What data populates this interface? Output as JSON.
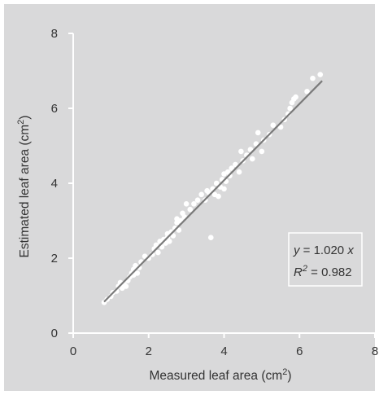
{
  "chart_data": {
    "type": "scatter",
    "xlabel": "Measured leaf area (cm",
    "xlabel_sup": "2",
    "xlabel_end": ")",
    "ylabel": "Estimated leaf area (cm",
    "ylabel_sup": "2",
    "ylabel_end": ")",
    "xlim": [
      0,
      8
    ],
    "ylim": [
      0,
      8
    ],
    "xticks": [
      0,
      2,
      4,
      6,
      8
    ],
    "yticks": [
      0,
      2,
      4,
      6,
      8
    ],
    "grid": false,
    "point_color": "#ffffff",
    "line_color": "#7a7a7a",
    "axis_color": "#ffffff",
    "background": "#d9d9da",
    "fit": {
      "slope": 1.02,
      "x_range": [
        0.82,
        6.6
      ]
    },
    "annotation": {
      "line1_var": "y",
      "line1_rest": " = 1.020 ",
      "line1_x": "x",
      "line2_var": "R",
      "line2_sup": "2",
      "line2_rest": " = 0.982"
    },
    "points": [
      [
        0.82,
        0.82
      ],
      [
        0.9,
        0.9
      ],
      [
        1.0,
        0.98
      ],
      [
        1.05,
        1.08
      ],
      [
        1.15,
        1.12
      ],
      [
        1.2,
        1.25
      ],
      [
        1.25,
        1.35
      ],
      [
        1.3,
        1.2
      ],
      [
        1.35,
        1.3
      ],
      [
        1.4,
        1.25
      ],
      [
        1.45,
        1.4
      ],
      [
        1.5,
        1.5
      ],
      [
        1.55,
        1.6
      ],
      [
        1.6,
        1.7
      ],
      [
        1.6,
        1.55
      ],
      [
        1.65,
        1.8
      ],
      [
        1.7,
        1.6
      ],
      [
        1.75,
        1.75
      ],
      [
        1.8,
        1.9
      ],
      [
        1.9,
        2.05
      ],
      [
        2.0,
        2.0
      ],
      [
        2.1,
        2.1
      ],
      [
        2.15,
        2.25
      ],
      [
        2.2,
        2.35
      ],
      [
        2.25,
        2.15
      ],
      [
        2.3,
        2.45
      ],
      [
        2.35,
        2.3
      ],
      [
        2.4,
        2.5
      ],
      [
        2.45,
        2.4
      ],
      [
        2.5,
        2.55
      ],
      [
        2.5,
        2.65
      ],
      [
        2.55,
        2.45
      ],
      [
        2.6,
        2.7
      ],
      [
        2.65,
        2.6
      ],
      [
        2.7,
        2.8
      ],
      [
        2.75,
        2.95
      ],
      [
        2.75,
        3.05
      ],
      [
        2.8,
        2.75
      ],
      [
        2.85,
        3.0
      ],
      [
        2.9,
        3.2
      ],
      [
        2.95,
        3.1
      ],
      [
        3.0,
        3.45
      ],
      [
        3.1,
        3.3
      ],
      [
        3.2,
        3.45
      ],
      [
        3.3,
        3.55
      ],
      [
        3.4,
        3.7
      ],
      [
        3.5,
        3.55
      ],
      [
        3.55,
        3.8
      ],
      [
        3.6,
        3.75
      ],
      [
        3.65,
        2.55
      ],
      [
        3.7,
        3.85
      ],
      [
        3.75,
        3.7
      ],
      [
        3.8,
        4.0
      ],
      [
        3.85,
        3.65
      ],
      [
        3.9,
        3.9
      ],
      [
        3.95,
        4.1
      ],
      [
        4.0,
        3.85
      ],
      [
        4.0,
        4.25
      ],
      [
        4.05,
        4.05
      ],
      [
        4.1,
        4.3
      ],
      [
        4.15,
        4.2
      ],
      [
        4.2,
        4.4
      ],
      [
        4.3,
        4.5
      ],
      [
        4.4,
        4.3
      ],
      [
        4.45,
        4.85
      ],
      [
        4.5,
        4.6
      ],
      [
        4.6,
        4.75
      ],
      [
        4.7,
        4.9
      ],
      [
        4.75,
        4.65
      ],
      [
        4.85,
        5.05
      ],
      [
        4.9,
        5.35
      ],
      [
        5.0,
        4.85
      ],
      [
        5.05,
        5.15
      ],
      [
        5.2,
        5.3
      ],
      [
        5.3,
        5.55
      ],
      [
        5.5,
        5.5
      ],
      [
        5.6,
        5.7
      ],
      [
        5.7,
        5.85
      ],
      [
        5.75,
        6.0
      ],
      [
        5.8,
        6.15
      ],
      [
        5.85,
        6.25
      ],
      [
        5.9,
        6.3
      ],
      [
        6.2,
        6.45
      ],
      [
        6.35,
        6.8
      ],
      [
        6.55,
        6.9
      ]
    ]
  }
}
